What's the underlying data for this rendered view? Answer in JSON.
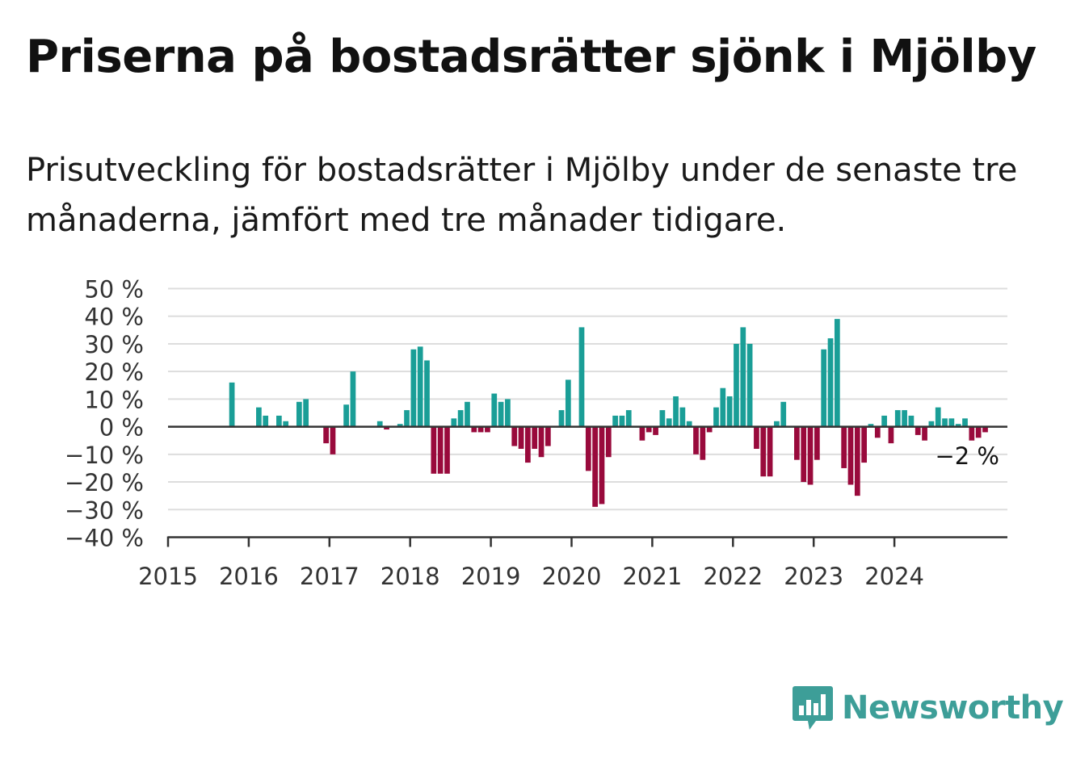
{
  "title": "Priserna på bostadsrätter sjönk i Mjölby",
  "subtitle": "Prisutveckling för bostadsrätter i Mjölby under de senaste tre månaderna, jämfört med tre månader tidigare.",
  "brand": "Newsworthy",
  "colors": {
    "positive": "#1a9e97",
    "negative": "#990a3c",
    "grid": "#dddddd",
    "axis": "#333333",
    "brand": "#3d9e98"
  },
  "chart_data": {
    "type": "bar",
    "ylim": [
      -40,
      50
    ],
    "y_ticks": [
      50,
      40,
      30,
      20,
      10,
      0,
      -10,
      -20,
      -30,
      -40
    ],
    "y_tick_labels": [
      "50 %",
      "40 %",
      "30 %",
      "20 %",
      "10 %",
      "0 %",
      "−10 %",
      "−20 %",
      "−30 %",
      "−40 %"
    ],
    "x_ticks": [
      "2015",
      "2016",
      "2017",
      "2018",
      "2019",
      "2020",
      "2021",
      "2022",
      "2023",
      "2024"
    ],
    "grid": true,
    "end_label": "−2 %",
    "series": [
      {
        "values": [
          null,
          null,
          null,
          null,
          null,
          null,
          null,
          null,
          null,
          16,
          null,
          null,
          null,
          7,
          4,
          null,
          4,
          2,
          null,
          9,
          10,
          null,
          null,
          -6,
          -10,
          null,
          8,
          20,
          null,
          null,
          null,
          2,
          -1,
          null,
          1,
          6,
          28,
          29,
          24,
          -17,
          -17,
          -17,
          3,
          6,
          9,
          -2,
          -2,
          -2,
          12,
          9,
          10,
          -7,
          -8,
          -13,
          -8,
          -11,
          -7,
          null,
          6,
          17,
          null,
          36,
          -16,
          -29,
          -28,
          -11,
          4,
          4,
          6,
          null,
          -5,
          -2,
          -3,
          6,
          3,
          11,
          7,
          2,
          -10,
          -12,
          -2,
          7,
          14,
          11,
          30,
          36,
          30,
          -8,
          -18,
          -18,
          2,
          9,
          null,
          -12,
          -20,
          -21,
          -12,
          28,
          32,
          39,
          -15,
          -21,
          -25,
          -13,
          1,
          -4,
          4,
          -6,
          6,
          6,
          4,
          -3,
          -5,
          2,
          7,
          3,
          3,
          1,
          3,
          -5,
          -4,
          -2
        ]
      }
    ]
  }
}
